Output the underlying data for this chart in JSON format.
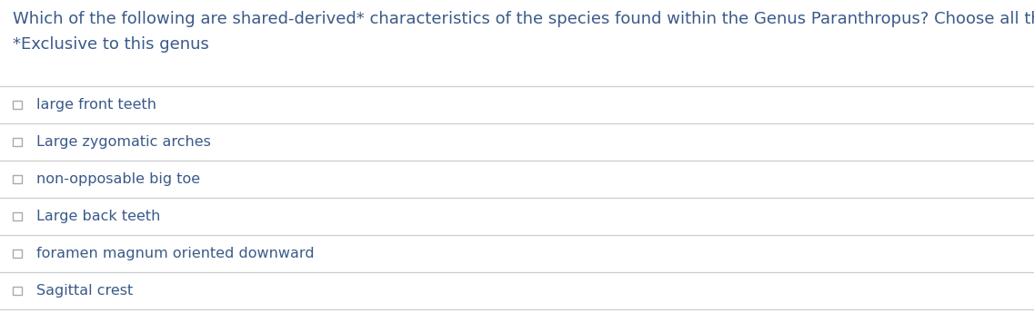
{
  "title": "Which of the following are shared-derived* characteristics of the species found within the Genus Paranthropus? Choose all that apply.",
  "subtitle": "*Exclusive to this genus",
  "options": [
    "large front teeth",
    "Large zygomatic arches",
    "non-opposable big toe",
    "Large back teeth",
    "foramen magnum oriented downward",
    "Sagittal crest"
  ],
  "title_color": "#3a5a8a",
  "subtitle_color": "#3a5a8a",
  "option_color": "#3a5a8a",
  "line_color": "#cccccc",
  "background_color": "#ffffff",
  "checkbox_color": "#aaaaaa",
  "title_fontsize": 13.0,
  "subtitle_fontsize": 13.0,
  "option_fontsize": 11.5,
  "fig_width": 11.37,
  "fig_height": 3.45
}
